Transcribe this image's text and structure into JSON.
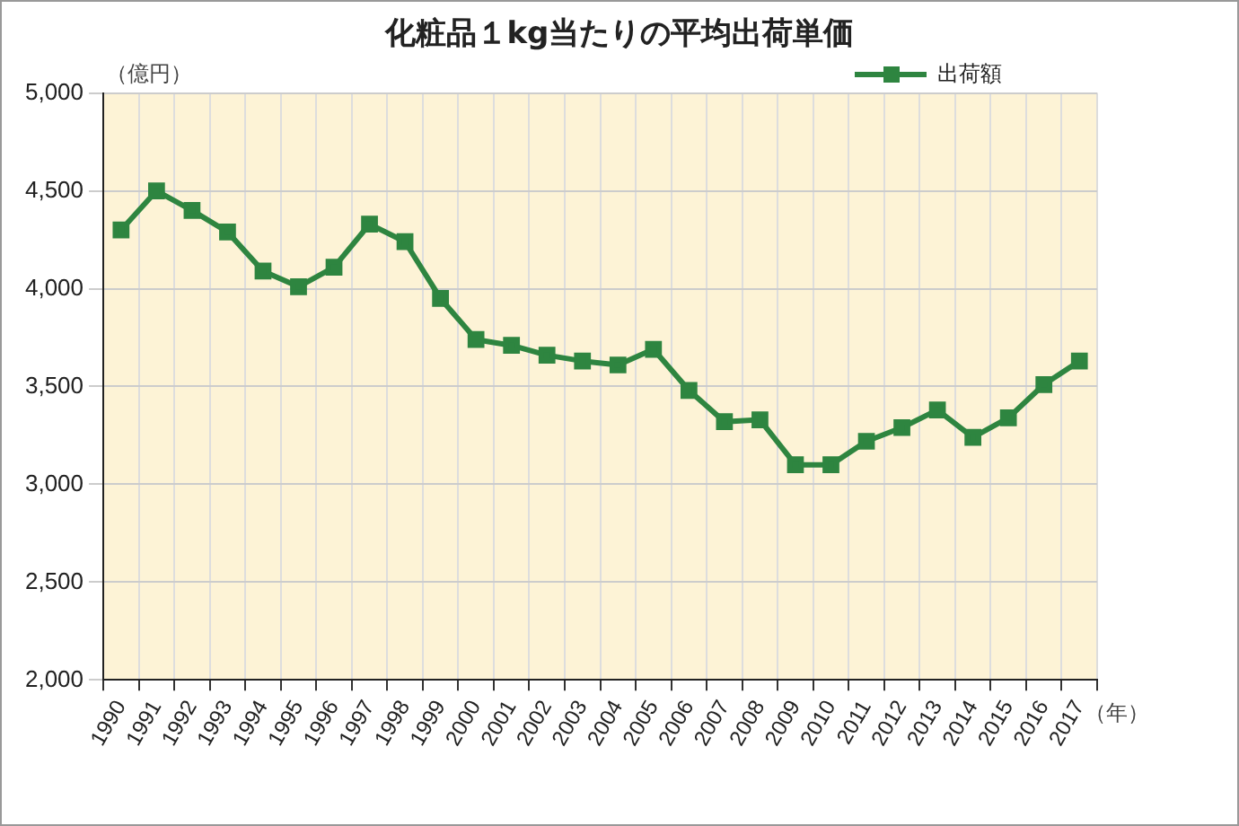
{
  "chart_data": {
    "type": "line",
    "title": "化粧品１kg当たりの平均出荷単価",
    "ylabel": "（億円）",
    "xlabel": "（年）",
    "categories": [
      "1990",
      "1991",
      "1992",
      "1993",
      "1994",
      "1995",
      "1996",
      "1997",
      "1998",
      "1999",
      "2000",
      "2001",
      "2002",
      "2003",
      "2004",
      "2005",
      "2006",
      "2007",
      "2008",
      "2009",
      "2010",
      "2011",
      "2012",
      "2013",
      "2014",
      "2015",
      "2016",
      "2017"
    ],
    "series": [
      {
        "name": "出荷額",
        "color": "#2e8540",
        "values": [
          4300,
          4500,
          4400,
          4290,
          4090,
          4010,
          4110,
          4330,
          4240,
          3950,
          3740,
          3710,
          3660,
          3630,
          3610,
          3690,
          3480,
          3320,
          3330,
          3100,
          3100,
          3220,
          3290,
          3380,
          3240,
          3340,
          3510,
          3630
        ]
      }
    ],
    "ylim": [
      2000,
      5000
    ],
    "yticks": [
      {
        "value": 2000,
        "label": "2,000"
      },
      {
        "value": 2500,
        "label": "2,500"
      },
      {
        "value": 3000,
        "label": "3,000"
      },
      {
        "value": 3500,
        "label": "3,500"
      },
      {
        "value": 4000,
        "label": "4,000"
      },
      {
        "value": 4500,
        "label": "4,500"
      },
      {
        "value": 5000,
        "label": "5,000"
      }
    ],
    "grid": true,
    "legend": "top right",
    "marker": "square",
    "line_style": "solid"
  }
}
